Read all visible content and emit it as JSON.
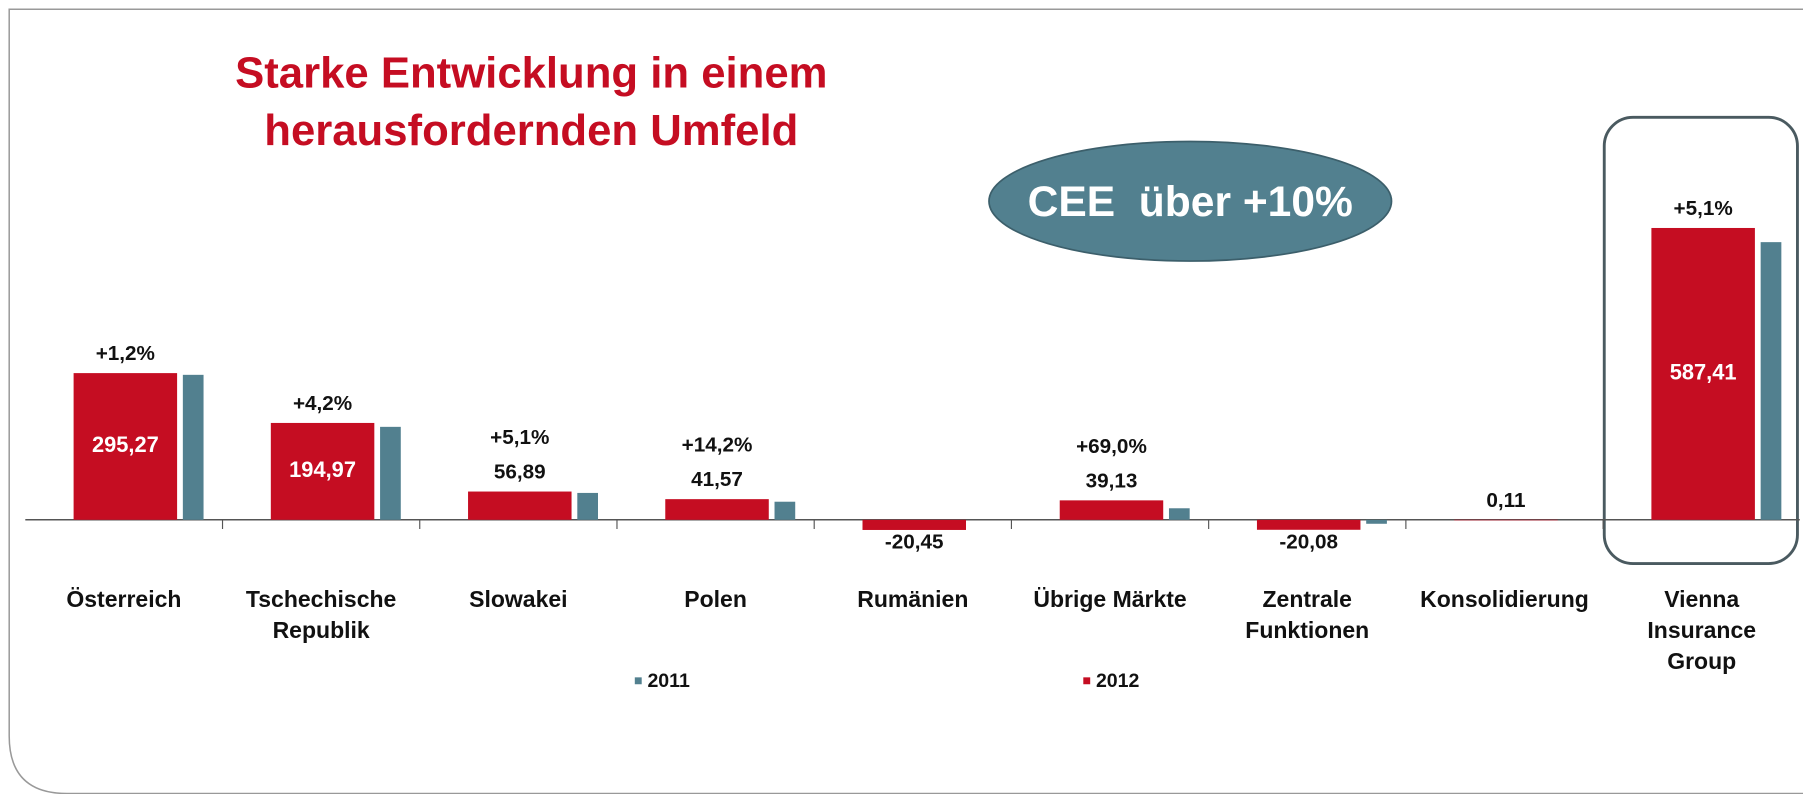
{
  "chart_data": {
    "type": "bar",
    "title": [
      "Starke Entwicklung in einem",
      "herausfordernden Umfeld"
    ],
    "annotation": "CEE  über +10%",
    "categories": [
      "Österreich",
      "Tschechische\nRepublik",
      "Slowakei",
      "Polen",
      "Rumänien",
      "Übrige Märkte",
      "Zentrale\nFunktionen",
      "Konsolidierung",
      "Vienna\nInsurance\nGroup"
    ],
    "growth_labels": [
      "+1,2%",
      "+4,2%",
      "+5,1%",
      "+14,2%",
      null,
      "+69,0%",
      null,
      null,
      "+5,1%"
    ],
    "series": [
      {
        "name": "2011",
        "color": "#52808f",
        "values": [
          291.8,
          187.1,
          54.1,
          36.4,
          null,
          23.2,
          -8,
          null,
          558.9
        ]
      },
      {
        "name": "2012",
        "color": "#c50d22",
        "values": [
          295.27,
          194.97,
          56.89,
          41.57,
          -20.45,
          39.13,
          -20.08,
          0.11,
          587.41
        ],
        "value_labels": [
          "295,27",
          "194,97",
          "56,89",
          "41,57",
          "-20,45",
          "39,13",
          "-20,08",
          "0,11",
          "587,41"
        ]
      }
    ]
  }
}
